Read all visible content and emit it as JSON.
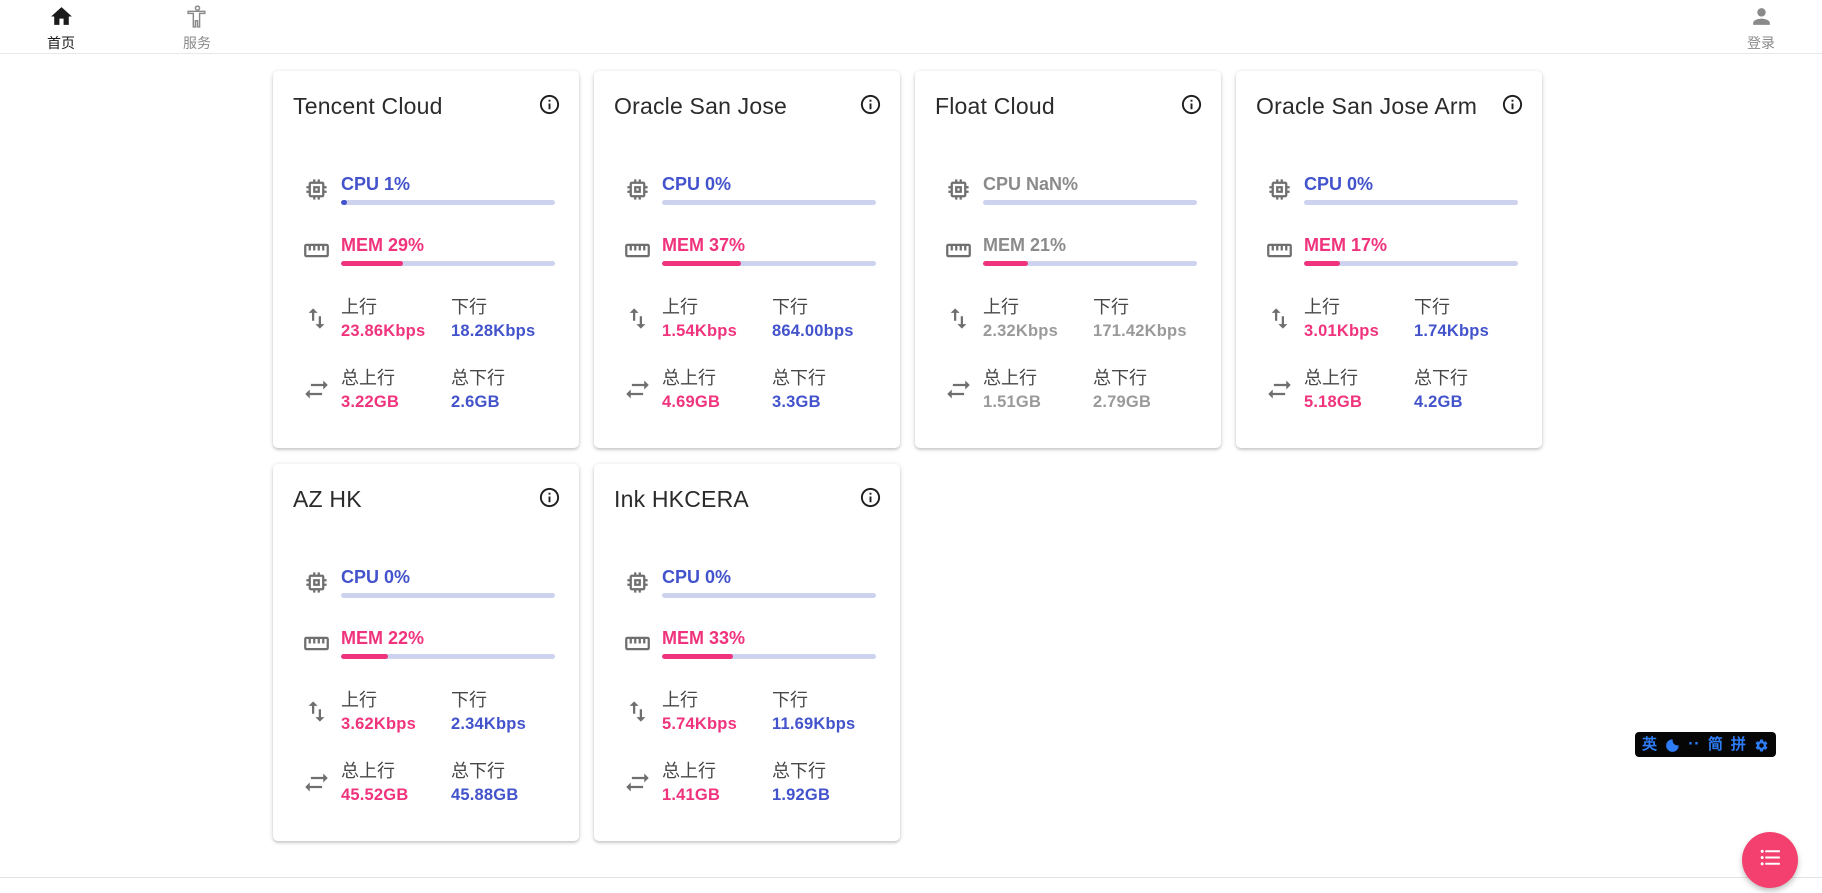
{
  "nav": {
    "home": "首页",
    "services": "服务",
    "login": "登录"
  },
  "labels": {
    "up": "上行",
    "down": "下行",
    "total_up": "总上行",
    "total_down": "总下行"
  },
  "colors": {
    "pink": "#F0337D",
    "blue": "#4353CB",
    "bar_track": "#CDD2EF",
    "fab_pink": "#F3406E",
    "ime_blue": "#2E7CF6",
    "ime_bg": "#060606"
  },
  "servers": [
    {
      "name": "Tencent Cloud",
      "online": true,
      "cpu_text": "CPU 1%",
      "cpu_pct": 1,
      "mem_text": "MEM 29%",
      "mem_pct": 29,
      "up": "23.86Kbps",
      "down": "18.28Kbps",
      "total_up": "3.22GB",
      "total_down": "2.6GB"
    },
    {
      "name": "Oracle San Jose",
      "online": true,
      "cpu_text": "CPU 0%",
      "cpu_pct": 0,
      "mem_text": "MEM 37%",
      "mem_pct": 37,
      "up": "1.54Kbps",
      "down": "864.00bps",
      "total_up": "4.69GB",
      "total_down": "3.3GB"
    },
    {
      "name": "Float Cloud",
      "online": false,
      "cpu_text": "CPU NaN%",
      "cpu_pct": 0,
      "mem_text": "MEM 21%",
      "mem_pct": 21,
      "up": "2.32Kbps",
      "down": "171.42Kbps",
      "total_up": "1.51GB",
      "total_down": "2.79GB"
    },
    {
      "name": "Oracle San Jose Arm",
      "online": true,
      "cpu_text": "CPU 0%",
      "cpu_pct": 0,
      "mem_text": "MEM 17%",
      "mem_pct": 17,
      "up": "3.01Kbps",
      "down": "1.74Kbps",
      "total_up": "5.18GB",
      "total_down": "4.2GB"
    },
    {
      "name": "AZ HK",
      "online": true,
      "cpu_text": "CPU 0%",
      "cpu_pct": 0,
      "mem_text": "MEM 22%",
      "mem_pct": 22,
      "up": "3.62Kbps",
      "down": "2.34Kbps",
      "total_up": "45.52GB",
      "total_down": "45.88GB"
    },
    {
      "name": "Ink HKCERA",
      "online": true,
      "cpu_text": "CPU 0%",
      "cpu_pct": 0,
      "mem_text": "MEM 33%",
      "mem_pct": 33,
      "up": "5.74Kbps",
      "down": "11.69Kbps",
      "total_up": "1.41GB",
      "total_down": "1.92GB"
    }
  ],
  "ime": {
    "lang": "英",
    "punct": "··",
    "simplified": "简",
    "pinyin": "拼"
  }
}
